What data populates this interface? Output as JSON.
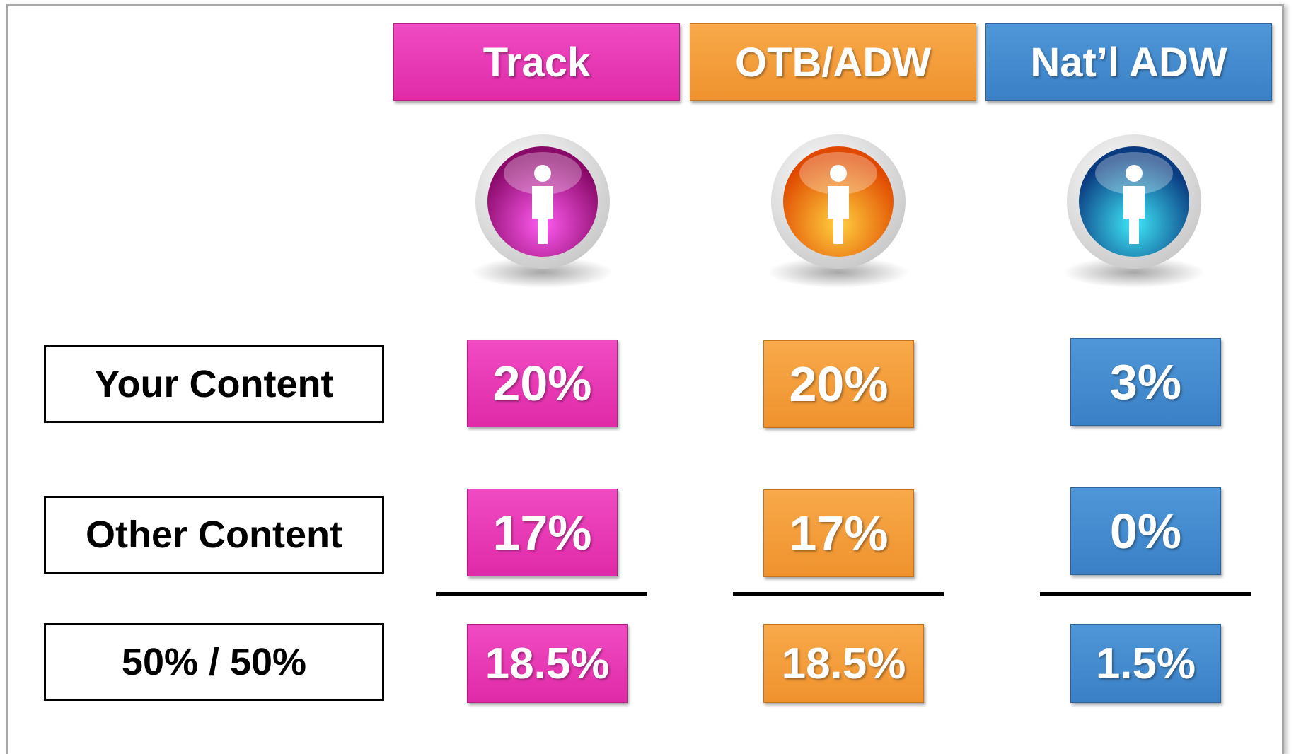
{
  "table": {
    "columns": [
      "Track",
      "OTB/ADW",
      "Nat’l ADW"
    ],
    "rows": [
      {
        "label": "Your Content",
        "cells": [
          "20%",
          "20%",
          "3%"
        ]
      },
      {
        "label": "Other Content",
        "cells": [
          "17%",
          "17%",
          "0%"
        ]
      },
      {
        "label": "50% / 50%",
        "cells": [
          "18.5%",
          "18.5%",
          "1.5%"
        ]
      }
    ]
  }
}
